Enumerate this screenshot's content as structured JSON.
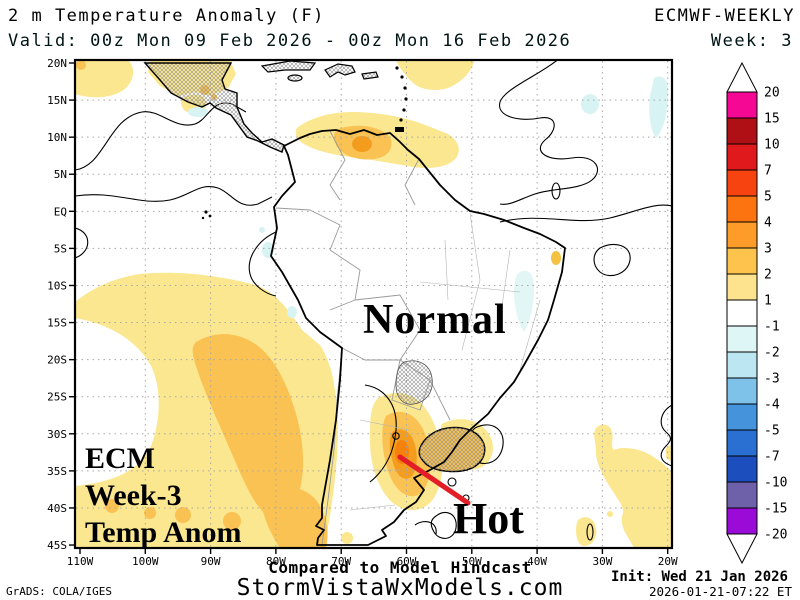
{
  "header": {
    "product_title": "2 m Temperature Anomaly (F)",
    "model": "ECMWF-WEEKLY",
    "valid_line": "Valid: 00z Mon 09 Feb 2026 - 00z Mon 16 Feb 2026",
    "week_label": "Week: 3"
  },
  "map": {
    "lat_labels": [
      "20N",
      "15N",
      "10N",
      "5N",
      "EQ",
      "5S",
      "10S",
      "15S",
      "20S",
      "25S",
      "30S",
      "35S",
      "40S",
      "45S"
    ],
    "lon_labels": [
      "110W",
      "100W",
      "90W",
      "80W",
      "70W",
      "60W",
      "50W",
      "40W",
      "30W",
      "20W"
    ],
    "annotations": {
      "normal": "Normal",
      "hot": "Hot",
      "ecm_line1": "ECM",
      "ecm_line2": "Week-3",
      "ecm_line3": "Temp Anom"
    },
    "annotation_colors": {
      "hot_red": "#e31e26",
      "normal_black": "#000000"
    },
    "shaded_regions": [
      {
        "area": "southeast Pacific off Chile/Peru",
        "anomaly_f": "+1 to +3"
      },
      {
        "area": "central Argentina",
        "anomaly_f": "+2 to +5",
        "label": "Hot"
      },
      {
        "area": "Uruguay / far southern Brazil",
        "anomaly_f": "+1 to +3"
      },
      {
        "area": "Venezuela / southern Caribbean",
        "anomaly_f": "+1 to +4"
      },
      {
        "area": "Central America",
        "anomaly_f": "+1 to +3"
      },
      {
        "area": "subtropical South Atlantic",
        "anomaly_f": "+1 to +2"
      },
      {
        "area": "most of Brazil / Amazon",
        "anomaly_f": "near 0",
        "label": "Normal"
      }
    ]
  },
  "colorbar": {
    "labels": [
      "20",
      "15",
      "10",
      "7",
      "5",
      "4",
      "3",
      "2",
      "1",
      "-1",
      "-2",
      "-3",
      "-4",
      "-5",
      "-7",
      "-10",
      "-15",
      "-20"
    ],
    "cell_colors": [
      "#f40894",
      "#ae1016",
      "#e01a1c",
      "#f74310",
      "#fb7410",
      "#fd9c28",
      "#fec34c",
      "#fee38e",
      "#ffffff",
      "#dff6f6",
      "#bce7f2",
      "#7ec2ea",
      "#4493db",
      "#2a70d2",
      "#1c4ebe",
      "#6f60aa",
      "#9a0bd8"
    ]
  },
  "footer": {
    "comparison_note": "Compared to Model Hindcast",
    "site": "StormVistaWxModels.com",
    "grads_credit": "GrADS: COLA/IGES",
    "init_line": "Init: Wed 21 Jan 2026",
    "init_timestamp": "2026-01-21-07:22 ET"
  }
}
